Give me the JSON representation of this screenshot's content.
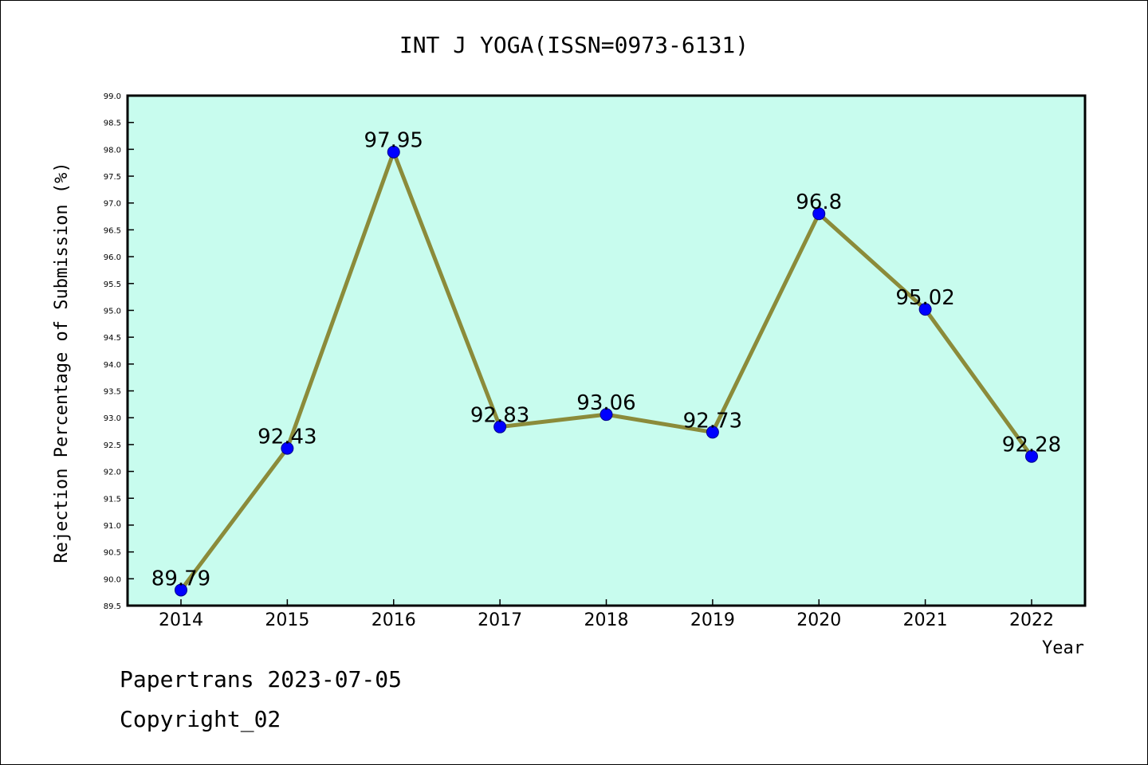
{
  "chart_data": {
    "type": "line",
    "title": "INT J YOGA(ISSN=0973-6131)",
    "xlabel": "Year",
    "ylabel": "Rejection Percentage of Submission (%)",
    "categories": [
      "2014",
      "2015",
      "2016",
      "2017",
      "2018",
      "2019",
      "2020",
      "2021",
      "2022"
    ],
    "values": [
      89.79,
      92.43,
      97.95,
      92.83,
      93.06,
      92.73,
      96.8,
      95.02,
      92.28
    ],
    "data_labels": [
      "89.79",
      "92.43",
      "97.95",
      "92.83",
      "93.06",
      "92.73",
      "96.8",
      "95.02",
      "92.28"
    ],
    "ylim": [
      89.5,
      99.0
    ],
    "yticks": [
      "89.5",
      "90.0",
      "90.5",
      "91.0",
      "91.5",
      "92.0",
      "92.5",
      "93.0",
      "93.5",
      "94.0",
      "94.5",
      "95.0",
      "95.5",
      "96.0",
      "96.5",
      "97.0",
      "97.5",
      "98.0",
      "98.5",
      "99.0"
    ],
    "grid": false,
    "colors": {
      "plot_background": "#c8fcee",
      "line": "#8b8b3a",
      "marker": "#0000ff"
    }
  },
  "footer": {
    "line1": "Papertrans 2023-07-05",
    "line2": "Copyright_02"
  }
}
